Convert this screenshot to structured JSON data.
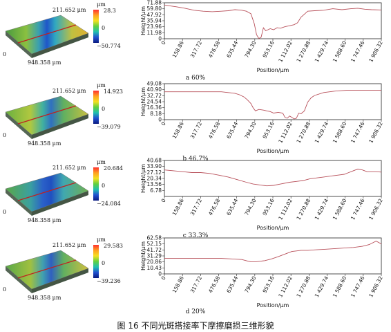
{
  "figure": {
    "caption": "图 16  不同光斑搭接率下摩擦磨损三维形貌"
  },
  "common": {
    "y_size": "211.652 μm",
    "x_size": "948.358 μm",
    "origin": "0",
    "unit": "μm",
    "zero_tick": "0",
    "xlabel": "Position/μm",
    "ylabel": "Height/μm"
  },
  "chart_data": [
    {
      "type": "line",
      "subcaption": "a  60%",
      "cbar_max": "28.3",
      "cbar_min": "−50.774",
      "xlabel": "Position/μm",
      "ylabel": "Height/μm",
      "xlim": [
        0,
        1906.32
      ],
      "ylim": [
        0,
        71.88
      ],
      "xticks": [
        "0",
        "158.86",
        "317.72",
        "476.58",
        "635.44",
        "794.30",
        "953.16",
        "1 112.02",
        "1 270.88",
        "1 429.74",
        "1 588.60",
        "1 747.46",
        "1 906.32"
      ],
      "yticks": [
        "0",
        "11.98",
        "23.96",
        "35.94",
        "47.92",
        "59.80",
        "71.88"
      ],
      "x": [
        0,
        40,
        100,
        180,
        260,
        340,
        420,
        500,
        560,
        620,
        680,
        720,
        760,
        790,
        810,
        830,
        850,
        870,
        890,
        910,
        930,
        960,
        990,
        1020,
        1060,
        1100,
        1140,
        1170,
        1200,
        1260,
        1320,
        1400,
        1480,
        1560,
        1640,
        1700,
        1760,
        1820,
        1906
      ],
      "y": [
        67.5,
        66,
        64,
        61,
        57,
        55,
        54,
        55,
        56,
        58,
        57,
        55,
        50,
        30,
        8,
        0.5,
        3,
        22,
        16,
        18,
        20,
        18,
        22,
        21,
        24,
        26,
        28,
        32,
        43,
        55,
        56,
        57,
        60,
        58,
        60,
        61,
        59,
        58,
        57.5
      ]
    },
    {
      "type": "line",
      "subcaption": "b  46.7%",
      "cbar_max": "14.923",
      "cbar_min": "−39.079",
      "xlabel": "Position/μm",
      "ylabel": "Height/μm",
      "xlim": [
        0,
        1906.32
      ],
      "ylim": [
        0,
        49.08
      ],
      "xticks": [
        "0",
        "158.86",
        "317.72",
        "476.58",
        "635.44",
        "794.30",
        "953.16",
        "1 112.02",
        "1 270.88",
        "1 429.74",
        "1 588.60",
        "1 747.46",
        "1 906.32"
      ],
      "yticks": [
        "0",
        "8.18",
        "16.36",
        "24.54",
        "32.72",
        "40.90",
        "49.08"
      ],
      "x": [
        0,
        100,
        200,
        300,
        400,
        500,
        560,
        620,
        660,
        700,
        730,
        760,
        780,
        800,
        830,
        870,
        900,
        930,
        960,
        1000,
        1040,
        1060,
        1080,
        1100,
        1120,
        1140,
        1160,
        1180,
        1200,
        1230,
        1260,
        1290,
        1320,
        1400,
        1500,
        1600,
        1700,
        1800,
        1906
      ],
      "y": [
        38,
        38,
        38,
        38,
        38,
        38,
        37,
        36,
        34,
        31,
        27,
        22,
        16,
        12,
        14,
        13,
        12,
        11,
        9,
        10,
        9,
        3,
        2,
        5,
        3,
        1,
        2,
        9,
        8,
        12,
        24,
        30,
        33,
        37,
        39,
        40,
        40,
        40,
        40
      ]
    },
    {
      "type": "line",
      "subcaption": "c  33.3%",
      "cbar_max": "20.684",
      "cbar_min": "−24.084",
      "xlabel": "Position/μm",
      "ylabel": "Height/μm",
      "xlim": [
        0,
        1906.32
      ],
      "ylim": [
        0,
        40.68
      ],
      "xticks": [
        "0",
        "158.86",
        "317.72",
        "476.58",
        "635.44",
        "794.30",
        "953.16",
        "1 112.02",
        "1 270.88",
        "1 429.74",
        "1 588.60",
        "1 747.46",
        "1 906.32"
      ],
      "yticks": [
        "6.78",
        "13.56",
        "20.34",
        "27.12",
        "33.90",
        "40.68"
      ],
      "x": [
        0,
        80,
        160,
        240,
        320,
        400,
        480,
        560,
        640,
        720,
        780,
        840,
        900,
        960,
        1020,
        1100,
        1160,
        1220,
        1280,
        1340,
        1400,
        1460,
        1520,
        1580,
        1620,
        1660,
        1700,
        1740,
        1780,
        1820,
        1860,
        1906
      ],
      "y": [
        30,
        29,
        28,
        27,
        27,
        26,
        24,
        22,
        19,
        16,
        14,
        13,
        12,
        12.5,
        14,
        16,
        17,
        18,
        20,
        21,
        22,
        23,
        24,
        25,
        27,
        29,
        31,
        30,
        28,
        28,
        28,
        27.5
      ]
    },
    {
      "type": "line",
      "subcaption": "d  20%",
      "cbar_max": "29.583",
      "cbar_min": "−39.236",
      "xlabel": "Position/μm",
      "ylabel": "Height/μm",
      "xlim": [
        0,
        1906.32
      ],
      "ylim": [
        0,
        62.58
      ],
      "xticks": [
        "0",
        "158.86",
        "317.72",
        "476.58",
        "635.44",
        "794.30",
        "953.16",
        "1 112.02",
        "1 270.88",
        "1 429.74",
        "1 588.60",
        "1 747.46",
        "1 906.32"
      ],
      "yticks": [
        "0",
        "10.43",
        "20.86",
        "31.29",
        "41.72",
        "52.15",
        "62.58"
      ],
      "x": [
        0,
        100,
        200,
        300,
        400,
        500,
        600,
        680,
        720,
        760,
        800,
        840,
        880,
        940,
        1000,
        1040,
        1080,
        1120,
        1160,
        1200,
        1260,
        1340,
        1420,
        1500,
        1580,
        1660,
        1740,
        1800,
        1830,
        1860,
        1880,
        1906
      ],
      "y": [
        27,
        27,
        27,
        27,
        27,
        27,
        26,
        25,
        23,
        21,
        21,
        22,
        23,
        26,
        30,
        33,
        36,
        39,
        40,
        41,
        41,
        42,
        43,
        44,
        45,
        46,
        48,
        51,
        54,
        57,
        55,
        52
      ]
    }
  ]
}
